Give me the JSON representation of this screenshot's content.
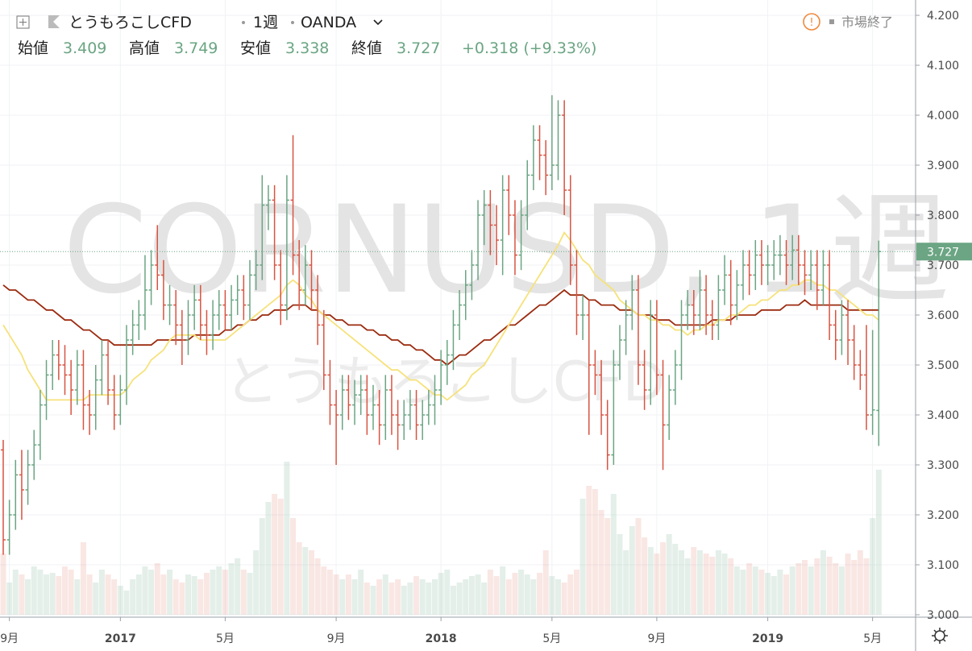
{
  "chart_data": {
    "type": "ohlc",
    "title": "とうもろこしCFD",
    "interval": "1週",
    "source": "OANDA",
    "status": "市場終了",
    "watermark": "CORNUSD, 1週",
    "ohlc_labels": [
      "始値",
      "高値",
      "安値",
      "終値"
    ],
    "change": "+0.318 (+9.33%)",
    "up_color": "#6ba583",
    "down_color": "#d75442",
    "categories": [
      null,
      "9月",
      null,
      null,
      null,
      null,
      null,
      null,
      null,
      null,
      null,
      null,
      null,
      null,
      null,
      null,
      null,
      null,
      null,
      "2017",
      null,
      null,
      null,
      null,
      null,
      null,
      null,
      null,
      null,
      null,
      null,
      null,
      null,
      null,
      null,
      null,
      "5月",
      null,
      null,
      null,
      null,
      null,
      null,
      null,
      null,
      null,
      null,
      null,
      null,
      null,
      null,
      null,
      null,
      null,
      "9月",
      null,
      null,
      null,
      null,
      null,
      null,
      null,
      null,
      null,
      null,
      null,
      null,
      null,
      null,
      null,
      null,
      "2018",
      null,
      null,
      null,
      null,
      null,
      null,
      null,
      null,
      null,
      null,
      null,
      null,
      null,
      null,
      null,
      null,
      null,
      "5月",
      null,
      null,
      null,
      null,
      null,
      null,
      null,
      null,
      null,
      null,
      null,
      null,
      null,
      null,
      null,
      null,
      "9月",
      null,
      null,
      null,
      null,
      null,
      null,
      null,
      null,
      null,
      null,
      null,
      null,
      null,
      null,
      null,
      null,
      null,
      "2019",
      null,
      null,
      null,
      null,
      null,
      null,
      null,
      null,
      null,
      null,
      null,
      null,
      null,
      null,
      null,
      null,
      "5月",
      null
    ],
    "open": [
      3.33,
      3.15,
      3.2,
      3.28,
      3.25,
      3.3,
      3.34,
      3.42,
      3.48,
      3.52,
      3.5,
      3.48,
      3.45,
      3.5,
      3.42,
      3.4,
      3.47,
      3.52,
      3.45,
      3.4,
      3.45,
      3.55,
      3.58,
      3.6,
      3.65,
      3.7,
      3.68,
      3.62,
      3.62,
      3.58,
      3.55,
      3.6,
      3.63,
      3.58,
      3.56,
      3.6,
      3.62,
      3.6,
      3.63,
      3.65,
      3.62,
      3.68,
      3.7,
      3.82,
      3.83,
      3.7,
      3.62,
      3.83,
      3.72,
      3.65,
      3.7,
      3.65,
      3.58,
      3.48,
      3.42,
      3.4,
      3.45,
      3.42,
      3.44,
      3.45,
      3.4,
      3.42,
      3.38,
      3.45,
      3.4,
      3.38,
      3.4,
      3.42,
      3.38,
      3.4,
      3.42,
      3.45,
      3.5,
      3.52,
      3.58,
      3.62,
      3.66,
      3.7,
      3.8,
      3.82,
      3.78,
      3.75,
      3.85,
      3.8,
      3.72,
      3.8,
      3.88,
      3.95,
      3.92,
      3.88,
      3.9,
      4.0,
      3.85,
      3.7,
      3.6,
      3.6,
      3.5,
      3.48,
      3.4,
      3.32,
      3.5,
      3.55,
      3.6,
      3.65,
      3.5,
      3.45,
      3.6,
      3.48,
      3.38,
      3.45,
      3.5,
      3.6,
      3.62,
      3.6,
      3.65,
      3.6,
      3.58,
      3.65,
      3.68,
      3.62,
      3.66,
      3.7,
      3.68,
      3.72,
      3.7,
      3.7,
      3.72,
      3.72,
      3.7,
      3.73,
      3.7,
      3.68,
      3.7,
      3.65,
      3.7,
      3.58,
      3.55,
      3.6,
      3.55,
      3.5,
      3.48,
      3.4,
      3.409
    ],
    "high": [
      3.35,
      3.23,
      3.31,
      3.33,
      3.33,
      3.37,
      3.45,
      3.51,
      3.55,
      3.55,
      3.54,
      3.51,
      3.53,
      3.53,
      3.45,
      3.5,
      3.55,
      3.55,
      3.48,
      3.48,
      3.58,
      3.61,
      3.63,
      3.72,
      3.73,
      3.78,
      3.71,
      3.66,
      3.65,
      3.61,
      3.63,
      3.66,
      3.66,
      3.61,
      3.63,
      3.65,
      3.65,
      3.66,
      3.68,
      3.68,
      3.71,
      3.73,
      3.88,
      3.86,
      3.86,
      3.73,
      3.88,
      3.96,
      3.75,
      3.74,
      3.73,
      3.68,
      3.61,
      3.51,
      3.45,
      3.48,
      3.48,
      3.47,
      3.48,
      3.48,
      3.46,
      3.45,
      3.48,
      3.48,
      3.43,
      3.43,
      3.45,
      3.45,
      3.43,
      3.45,
      3.48,
      3.53,
      3.55,
      3.61,
      3.65,
      3.69,
      3.73,
      3.83,
      3.85,
      3.85,
      3.82,
      3.88,
      3.88,
      3.83,
      3.83,
      3.91,
      3.98,
      3.98,
      3.95,
      4.04,
      4.03,
      4.03,
      3.88,
      3.73,
      3.64,
      3.63,
      3.53,
      3.51,
      3.43,
      3.53,
      3.58,
      3.63,
      3.68,
      3.68,
      3.53,
      3.63,
      3.63,
      3.51,
      3.48,
      3.53,
      3.63,
      3.65,
      3.65,
      3.69,
      3.68,
      3.63,
      3.68,
      3.72,
      3.71,
      3.69,
      3.73,
      3.73,
      3.75,
      3.75,
      3.74,
      3.75,
      3.76,
      3.75,
      3.76,
      3.76,
      3.73,
      3.73,
      3.73,
      3.73,
      3.73,
      3.61,
      3.63,
      3.63,
      3.58,
      3.53,
      3.58,
      3.57,
      3.749
    ],
    "low": [
      3.12,
      3.12,
      3.17,
      3.19,
      3.22,
      3.27,
      3.31,
      3.39,
      3.45,
      3.47,
      3.44,
      3.4,
      3.42,
      3.37,
      3.36,
      3.37,
      3.44,
      3.42,
      3.37,
      3.38,
      3.42,
      3.52,
      3.55,
      3.57,
      3.62,
      3.65,
      3.59,
      3.58,
      3.54,
      3.5,
      3.52,
      3.57,
      3.55,
      3.52,
      3.53,
      3.57,
      3.57,
      3.57,
      3.6,
      3.59,
      3.59,
      3.65,
      3.67,
      3.77,
      3.67,
      3.58,
      3.59,
      3.68,
      3.61,
      3.62,
      3.61,
      3.54,
      3.45,
      3.38,
      3.3,
      3.37,
      3.39,
      3.38,
      3.4,
      3.36,
      3.37,
      3.34,
      3.35,
      3.36,
      3.33,
      3.35,
      3.37,
      3.35,
      3.35,
      3.38,
      3.38,
      3.42,
      3.46,
      3.49,
      3.55,
      3.59,
      3.63,
      3.67,
      3.74,
      3.72,
      3.7,
      3.68,
      3.76,
      3.68,
      3.69,
      3.77,
      3.85,
      3.87,
      3.84,
      3.85,
      3.87,
      3.8,
      3.66,
      3.56,
      3.55,
      3.36,
      3.44,
      3.36,
      3.29,
      3.3,
      3.47,
      3.52,
      3.57,
      3.46,
      3.41,
      3.42,
      3.44,
      3.29,
      3.35,
      3.42,
      3.47,
      3.57,
      3.56,
      3.57,
      3.56,
      3.55,
      3.55,
      3.62,
      3.58,
      3.59,
      3.63,
      3.64,
      3.65,
      3.66,
      3.66,
      3.67,
      3.68,
      3.66,
      3.67,
      3.66,
      3.64,
      3.65,
      3.61,
      3.62,
      3.55,
      3.51,
      3.52,
      3.5,
      3.47,
      3.45,
      3.37,
      3.36,
      3.338
    ],
    "close": [
      3.15,
      3.2,
      3.28,
      3.25,
      3.3,
      3.34,
      3.42,
      3.48,
      3.52,
      3.5,
      3.48,
      3.45,
      3.5,
      3.42,
      3.4,
      3.47,
      3.52,
      3.45,
      3.4,
      3.45,
      3.55,
      3.58,
      3.6,
      3.65,
      3.7,
      3.68,
      3.62,
      3.62,
      3.58,
      3.55,
      3.6,
      3.63,
      3.58,
      3.56,
      3.6,
      3.62,
      3.6,
      3.63,
      3.65,
      3.62,
      3.68,
      3.7,
      3.82,
      3.83,
      3.7,
      3.62,
      3.83,
      3.72,
      3.65,
      3.7,
      3.65,
      3.58,
      3.48,
      3.42,
      3.4,
      3.45,
      3.42,
      3.44,
      3.45,
      3.4,
      3.42,
      3.38,
      3.45,
      3.4,
      3.38,
      3.4,
      3.42,
      3.38,
      3.4,
      3.42,
      3.45,
      3.5,
      3.52,
      3.58,
      3.62,
      3.66,
      3.7,
      3.8,
      3.82,
      3.78,
      3.75,
      3.85,
      3.8,
      3.72,
      3.8,
      3.88,
      3.95,
      3.92,
      3.88,
      3.9,
      4.0,
      3.85,
      3.7,
      3.6,
      3.6,
      3.5,
      3.48,
      3.4,
      3.32,
      3.5,
      3.55,
      3.6,
      3.65,
      3.5,
      3.45,
      3.6,
      3.48,
      3.38,
      3.45,
      3.5,
      3.6,
      3.62,
      3.6,
      3.65,
      3.6,
      3.58,
      3.65,
      3.68,
      3.62,
      3.66,
      3.7,
      3.68,
      3.72,
      3.7,
      3.7,
      3.72,
      3.72,
      3.7,
      3.73,
      3.7,
      3.68,
      3.7,
      3.65,
      3.7,
      3.58,
      3.55,
      3.6,
      3.55,
      3.5,
      3.48,
      3.4,
      3.41,
      3.727
    ],
    "volume": [
      38,
      20,
      28,
      25,
      22,
      30,
      28,
      25,
      26,
      24,
      30,
      28,
      22,
      45,
      25,
      20,
      28,
      25,
      22,
      18,
      15,
      22,
      25,
      30,
      28,
      32,
      25,
      28,
      22,
      20,
      25,
      24,
      22,
      26,
      28,
      30,
      28,
      32,
      35,
      28,
      26,
      40,
      60,
      70,
      75,
      72,
      95,
      60,
      45,
      42,
      40,
      35,
      30,
      28,
      25,
      22,
      25,
      22,
      28,
      20,
      18,
      22,
      25,
      20,
      22,
      18,
      20,
      24,
      22,
      20,
      22,
      26,
      28,
      18,
      20,
      22,
      24,
      25,
      20,
      28,
      24,
      30,
      22,
      26,
      28,
      25,
      22,
      26,
      40,
      24,
      22,
      20,
      25,
      28,
      72,
      80,
      78,
      65,
      60,
      75,
      50,
      40,
      55,
      60,
      48,
      42,
      38,
      45,
      50,
      44,
      40,
      35,
      42,
      40,
      38,
      36,
      40,
      38,
      35,
      30,
      28,
      32,
      30,
      28,
      26,
      24,
      28,
      25,
      30,
      32,
      34,
      30,
      35,
      40,
      36,
      32,
      30,
      38,
      34,
      40,
      35,
      60,
      90
    ],
    "ribbons": [
      {
        "color": "#9b2a0e",
        "values": [
          3.66,
          3.65,
          3.65,
          3.64,
          3.63,
          3.63,
          3.62,
          3.61,
          3.61,
          3.6,
          3.59,
          3.59,
          3.58,
          3.57,
          3.57,
          3.56,
          3.55,
          3.55,
          3.54,
          3.54,
          3.54,
          3.54,
          3.54,
          3.54,
          3.54,
          3.55,
          3.55,
          3.55,
          3.55,
          3.55,
          3.55,
          3.56,
          3.56,
          3.56,
          3.56,
          3.56,
          3.57,
          3.57,
          3.58,
          3.58,
          3.59,
          3.59,
          3.6,
          3.6,
          3.61,
          3.61,
          3.61,
          3.62,
          3.62,
          3.62,
          3.61,
          3.61,
          3.6,
          3.6,
          3.59,
          3.59,
          3.58,
          3.58,
          3.58,
          3.57,
          3.57,
          3.56,
          3.56,
          3.55,
          3.55,
          3.54,
          3.54,
          3.53,
          3.53,
          3.52,
          3.51,
          3.51,
          3.5,
          3.51,
          3.52,
          3.52,
          3.53,
          3.54,
          3.55,
          3.55,
          3.56,
          3.57,
          3.58,
          3.58,
          3.59,
          3.6,
          3.61,
          3.62,
          3.62,
          3.63,
          3.64,
          3.65,
          3.64,
          3.64,
          3.64,
          3.63,
          3.63,
          3.62,
          3.62,
          3.62,
          3.61,
          3.61,
          3.61,
          3.6,
          3.6,
          3.6,
          3.59,
          3.59,
          3.59,
          3.58,
          3.58,
          3.58,
          3.58,
          3.58,
          3.58,
          3.59,
          3.59,
          3.59,
          3.59,
          3.6,
          3.6,
          3.6,
          3.6,
          3.61,
          3.61,
          3.61,
          3.61,
          3.62,
          3.62,
          3.62,
          3.63,
          3.62,
          3.62,
          3.62,
          3.62,
          3.62,
          3.62,
          3.61,
          3.61,
          3.61,
          3.61,
          3.61,
          3.61
        ]
      },
      {
        "color": "#f6e27a",
        "values": [
          3.58,
          3.56,
          3.54,
          3.52,
          3.49,
          3.47,
          3.45,
          3.43,
          3.43,
          3.43,
          3.43,
          3.43,
          3.43,
          3.43,
          3.44,
          3.44,
          3.44,
          3.44,
          3.44,
          3.44,
          3.45,
          3.47,
          3.48,
          3.49,
          3.51,
          3.52,
          3.53,
          3.55,
          3.56,
          3.56,
          3.56,
          3.56,
          3.55,
          3.55,
          3.55,
          3.55,
          3.55,
          3.56,
          3.57,
          3.58,
          3.59,
          3.6,
          3.61,
          3.62,
          3.63,
          3.64,
          3.66,
          3.67,
          3.66,
          3.64,
          3.63,
          3.61,
          3.6,
          3.59,
          3.58,
          3.57,
          3.56,
          3.55,
          3.54,
          3.53,
          3.52,
          3.51,
          3.5,
          3.49,
          3.49,
          3.48,
          3.47,
          3.47,
          3.46,
          3.45,
          3.44,
          3.44,
          3.43,
          3.44,
          3.45,
          3.46,
          3.48,
          3.49,
          3.5,
          3.52,
          3.54,
          3.56,
          3.58,
          3.6,
          3.62,
          3.64,
          3.66,
          3.68,
          3.7,
          3.72,
          3.74,
          3.765,
          3.75,
          3.73,
          3.71,
          3.7,
          3.68,
          3.67,
          3.66,
          3.65,
          3.63,
          3.62,
          3.61,
          3.6,
          3.6,
          3.59,
          3.59,
          3.58,
          3.58,
          3.57,
          3.57,
          3.56,
          3.57,
          3.57,
          3.58,
          3.58,
          3.59,
          3.59,
          3.6,
          3.6,
          3.61,
          3.62,
          3.62,
          3.63,
          3.63,
          3.64,
          3.65,
          3.65,
          3.66,
          3.66,
          3.67,
          3.67,
          3.66,
          3.66,
          3.65,
          3.65,
          3.64,
          3.63,
          3.62,
          3.61,
          3.6,
          3.6,
          3.59
        ]
      }
    ],
    "ylim": [
      3.0,
      4.2
    ],
    "yticks": [
      {
        "value": 3.0,
        "label": "3.000"
      },
      {
        "value": 3.1,
        "label": "3.100"
      },
      {
        "value": 3.2,
        "label": "3.200"
      },
      {
        "value": 3.3,
        "label": "3.300"
      },
      {
        "value": 3.4,
        "label": "3.400"
      },
      {
        "value": 3.5,
        "label": "3.500"
      },
      {
        "value": 3.6,
        "label": "3.600"
      },
      {
        "value": 3.7,
        "label": "3.700"
      },
      {
        "value": 3.8,
        "label": "3.800"
      },
      {
        "value": 3.9,
        "label": "3.900"
      },
      {
        "value": 4.0,
        "label": "4.000"
      },
      {
        "value": 4.1,
        "label": "4.100"
      },
      {
        "value": 4.2,
        "label": "4.200"
      }
    ],
    "grid": true
  }
}
